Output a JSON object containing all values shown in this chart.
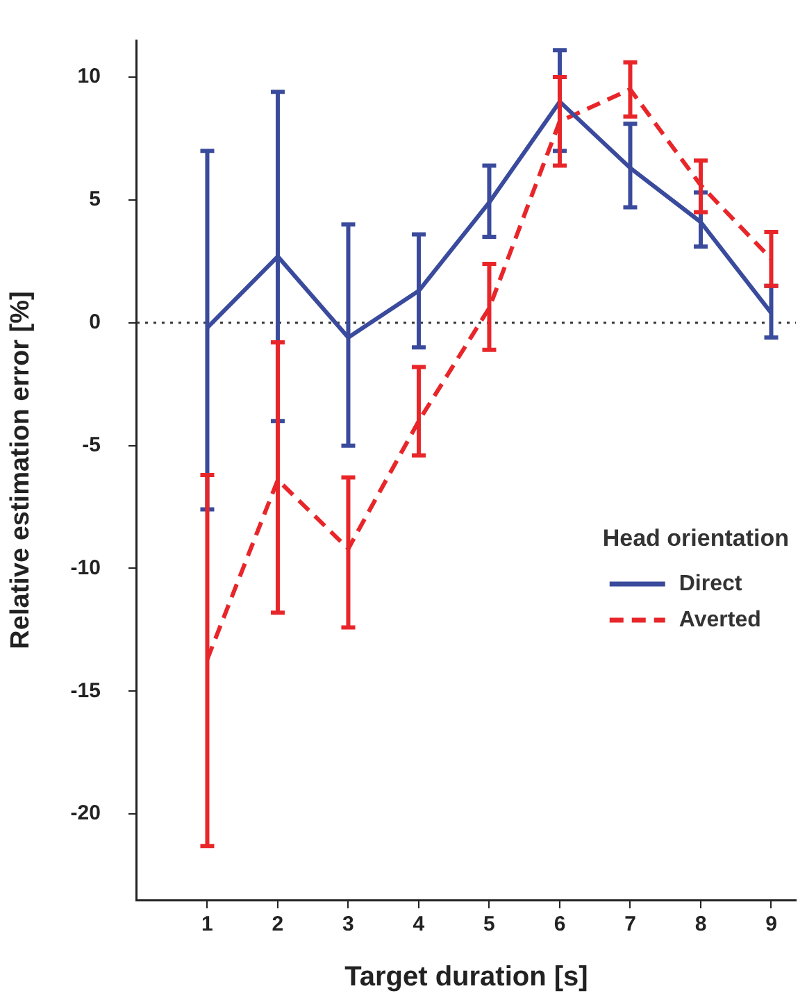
{
  "chart_data": {
    "type": "line",
    "xlabel": "Target duration [s]",
    "ylabel": "Relative estimation error [%]",
    "legend_title": "Head orientation",
    "x": [
      1,
      2,
      3,
      4,
      5,
      6,
      7,
      8,
      9
    ],
    "xlim": [
      0,
      9.35
    ],
    "xticks": [
      1,
      2,
      3,
      4,
      5,
      6,
      7,
      8,
      9
    ],
    "ylim": [
      -23.5,
      11.5
    ],
    "yticks": [
      -20,
      -15,
      -10,
      -5,
      0,
      5,
      10
    ],
    "series": [
      {
        "name": "Direct",
        "color": "#3a4a9c",
        "line_style": "solid",
        "values": [
          -0.2,
          2.7,
          -0.6,
          1.3,
          4.9,
          9.0,
          6.3,
          4.1,
          0.4
        ],
        "errors": [
          [
            -7.6,
            7.0
          ],
          [
            -4.0,
            9.4
          ],
          [
            -5.0,
            4.0
          ],
          [
            -1.0,
            3.6
          ],
          [
            3.5,
            6.4
          ],
          [
            7.0,
            11.1
          ],
          [
            4.7,
            8.1
          ],
          [
            3.1,
            5.3
          ],
          [
            -0.6,
            1.5
          ]
        ]
      },
      {
        "name": "Averted",
        "color": "#e8262a",
        "line_style": "dashed",
        "values": [
          -13.7,
          -6.4,
          -9.2,
          -4.0,
          0.6,
          8.2,
          9.5,
          5.6,
          2.6
        ],
        "errors": [
          [
            -21.3,
            -6.2
          ],
          [
            -11.8,
            -0.8
          ],
          [
            -12.4,
            -6.3
          ],
          [
            -5.4,
            -1.8
          ],
          [
            -1.1,
            2.4
          ],
          [
            6.4,
            10.0
          ],
          [
            8.4,
            10.6
          ],
          [
            4.5,
            6.6
          ],
          [
            1.5,
            3.7
          ]
        ]
      }
    ],
    "ref_lines": [
      {
        "axis": "y",
        "value": 0,
        "color": "#333333",
        "line_style": "dotted"
      }
    ],
    "legend": "right",
    "grid": false,
    "marker": "none"
  }
}
